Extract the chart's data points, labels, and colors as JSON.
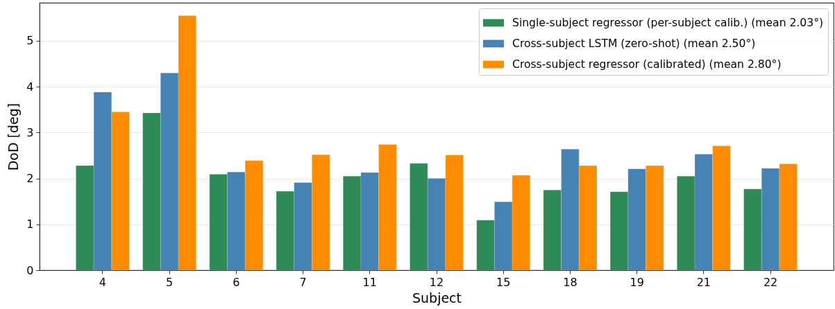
{
  "chart_data": {
    "type": "bar",
    "xlabel": "Subject",
    "ylabel": "DoD [deg]",
    "categories": [
      "4",
      "5",
      "6",
      "7",
      "11",
      "12",
      "15",
      "18",
      "19",
      "21",
      "22"
    ],
    "series": [
      {
        "name": "Single-subject regressor (per-subject calib.) (mean 2.03°)",
        "color": "#2e8b57",
        "values": [
          2.28,
          3.43,
          2.09,
          1.72,
          2.05,
          2.33,
          1.09,
          1.75,
          1.71,
          2.05,
          1.77
        ]
      },
      {
        "name": "Cross-subject LSTM (zero-shot) (mean 2.50°)",
        "color": "#4682b4",
        "values": [
          3.88,
          4.3,
          2.14,
          1.91,
          2.13,
          2.0,
          1.49,
          2.64,
          2.21,
          2.53,
          2.22
        ]
      },
      {
        "name": "Cross-subject regressor (calibrated) (mean 2.80°)",
        "color": "#ff8c00",
        "values": [
          3.45,
          5.55,
          2.39,
          2.52,
          2.74,
          2.51,
          2.07,
          2.28,
          2.28,
          2.71,
          2.32
        ]
      }
    ],
    "ylim": [
      0,
      5.83
    ],
    "yticks": [
      0,
      1,
      2,
      3,
      4,
      5
    ],
    "grid": "y",
    "legend": "top right"
  }
}
